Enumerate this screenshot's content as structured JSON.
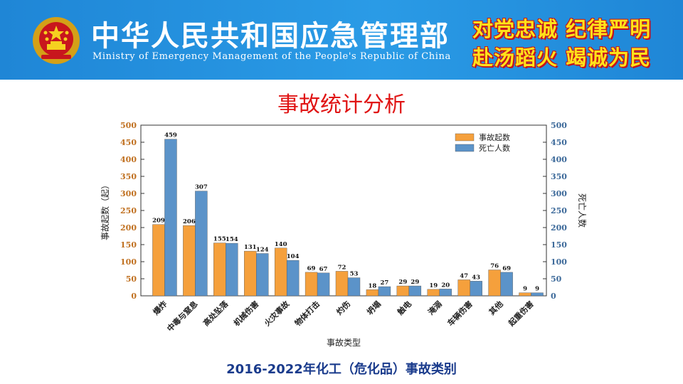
{
  "header": {
    "org_name_cn": "中华人民共和国应急管理部",
    "org_name_en": "Ministry of Emergency Management of the People's Republic of China",
    "motto_line1": "对党忠诚 纪律严明",
    "motto_line2": "赴汤蹈火 竭诚为民",
    "bg_color": "#2a9be6",
    "motto_color": "#ffe21a"
  },
  "slide_title": "事故统计分析",
  "caption": "2016-2022年化工（危化品）事故类别",
  "chart_data": {
    "type": "bar",
    "xlabel": "事故类型",
    "ylabel_left": "事故起数（起）",
    "ylabel_right": "死亡人数",
    "ylim": [
      0,
      500
    ],
    "yticks": [
      0,
      50,
      100,
      150,
      200,
      250,
      300,
      350,
      400,
      450,
      500
    ],
    "legend_position": "top-right",
    "grid": false,
    "categories": [
      "爆炸",
      "中毒与窒息",
      "高处坠落",
      "机械伤害",
      "火灾事故",
      "物体打击",
      "灼伤",
      "坍塌",
      "触电",
      "淹溺",
      "车辆伤害",
      "其他",
      "起重伤害"
    ],
    "series": [
      {
        "name": "事故起数",
        "color": "#f5a03c",
        "values": [
          209,
          206,
          155,
          131,
          140,
          69,
          72,
          18,
          29,
          19,
          47,
          76,
          9
        ]
      },
      {
        "name": "死亡人数",
        "color": "#5b93c9",
        "values": [
          459,
          307,
          154,
          124,
          104,
          67,
          53,
          27,
          29,
          20,
          43,
          69,
          9
        ]
      }
    ],
    "left_axis_color": "#c07020",
    "right_axis_color": "#3d6a9a"
  }
}
